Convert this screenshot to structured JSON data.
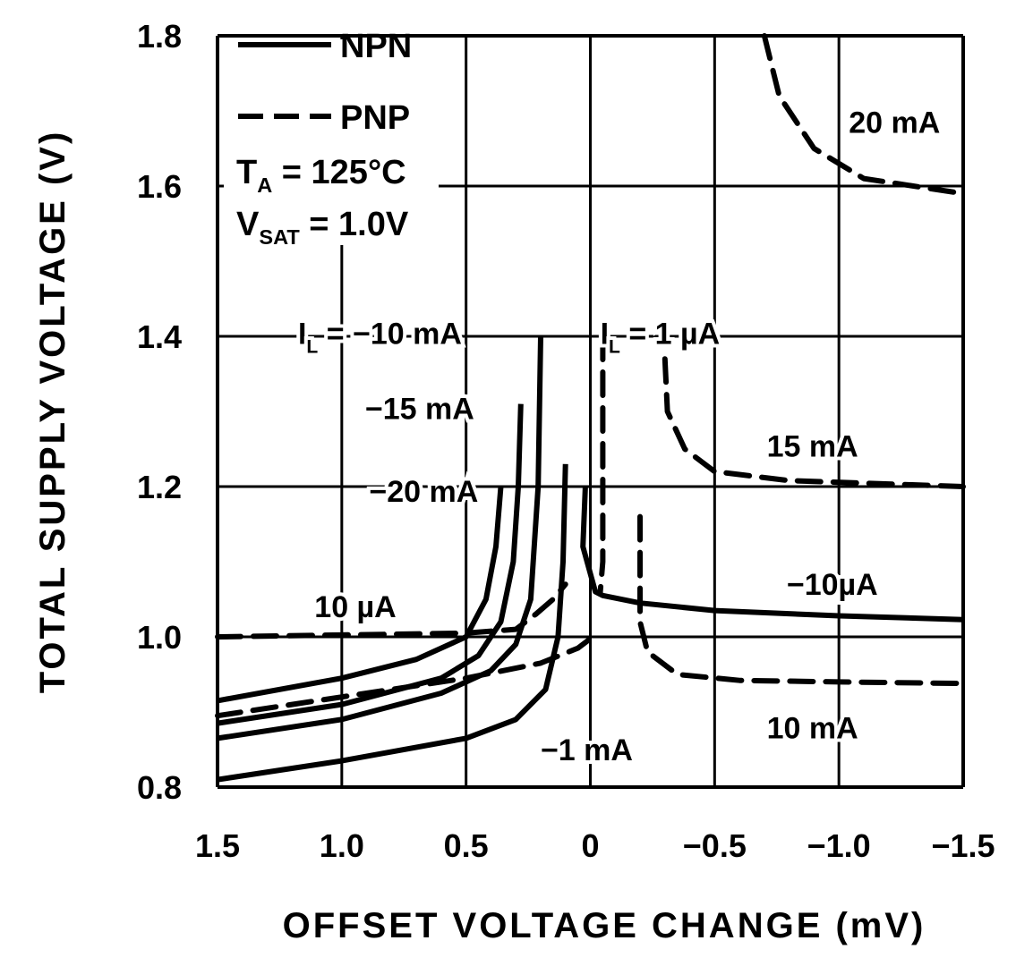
{
  "chart_data": {
    "type": "line",
    "xlabel": "OFFSET VOLTAGE CHANGE (mV)",
    "ylabel": "TOTAL SUPPLY VOLTAGE (V)",
    "xlim": [
      1.5,
      -1.5
    ],
    "ylim": [
      0.8,
      1.8
    ],
    "x_reversed": true,
    "grid": true,
    "x_ticks": [
      1.5,
      1.0,
      0.5,
      0,
      -0.5,
      -1.0,
      -1.5
    ],
    "x_tick_labels": [
      "1.5",
      "1.0",
      "0.5",
      "0",
      "−0.5",
      "−1.0",
      "−1.5"
    ],
    "y_ticks": [
      0.8,
      1.0,
      1.2,
      1.4,
      1.6,
      1.8
    ],
    "y_tick_labels": [
      "0.8",
      "1.0",
      "1.2",
      "1.4",
      "1.6",
      "1.8"
    ],
    "legend": {
      "placement": "top-left",
      "entries": [
        {
          "label": "NPN",
          "style": "solid"
        },
        {
          "label": "PNP",
          "style": "dashed"
        }
      ],
      "conditions": [
        {
          "main": "T",
          "sub": "A",
          "rest": " = 125°C"
        },
        {
          "main": "V",
          "sub": "SAT",
          "rest": " = 1.0V"
        }
      ]
    },
    "series": [
      {
        "type": "NPN",
        "label": "−20 mA",
        "style": "solid",
        "points": [
          [
            1.5,
            0.915
          ],
          [
            1.0,
            0.945
          ],
          [
            0.7,
            0.97
          ],
          [
            0.5,
            1.0
          ],
          [
            0.42,
            1.05
          ],
          [
            0.38,
            1.12
          ],
          [
            0.36,
            1.2
          ]
        ]
      },
      {
        "type": "NPN",
        "label": "−15 mA",
        "style": "solid",
        "points": [
          [
            1.5,
            0.885
          ],
          [
            1.0,
            0.91
          ],
          [
            0.6,
            0.945
          ],
          [
            0.45,
            0.975
          ],
          [
            0.36,
            1.02
          ],
          [
            0.31,
            1.1
          ],
          [
            0.29,
            1.2
          ],
          [
            0.28,
            1.31
          ]
        ]
      },
      {
        "type": "NPN",
        "label": "−10 mA",
        "style": "solid",
        "points": [
          [
            1.5,
            0.865
          ],
          [
            1.0,
            0.89
          ],
          [
            0.6,
            0.925
          ],
          [
            0.4,
            0.955
          ],
          [
            0.3,
            0.99
          ],
          [
            0.24,
            1.05
          ],
          [
            0.21,
            1.2
          ],
          [
            0.2,
            1.4
          ]
        ]
      },
      {
        "type": "NPN",
        "label": "−1 mA",
        "style": "solid",
        "points": [
          [
            1.5,
            0.81
          ],
          [
            1.0,
            0.835
          ],
          [
            0.5,
            0.865
          ],
          [
            0.3,
            0.89
          ],
          [
            0.18,
            0.93
          ],
          [
            0.13,
            1.0
          ],
          [
            0.11,
            1.1
          ],
          [
            0.1,
            1.23
          ]
        ]
      },
      {
        "type": "NPN",
        "label": "−10µA",
        "style": "solid",
        "points": [
          [
            0.02,
            1.2
          ],
          [
            0.03,
            1.12
          ],
          [
            -0.02,
            1.06
          ],
          [
            -0.05,
            1.055
          ],
          [
            -0.2,
            1.045
          ],
          [
            -0.5,
            1.035
          ],
          [
            -1.0,
            1.028
          ],
          [
            -1.5,
            1.023
          ]
        ]
      },
      {
        "type": "PNP",
        "label": "10 µA",
        "style": "dashed",
        "points": [
          [
            1.5,
            1.0
          ],
          [
            0.5,
            1.005
          ],
          [
            0.3,
            1.01
          ],
          [
            0.22,
            1.03
          ],
          [
            0.15,
            1.05
          ],
          [
            0.1,
            1.07
          ]
        ]
      },
      {
        "type": "PNP",
        "style": "dashed",
        "points": [
          [
            1.5,
            0.895
          ],
          [
            1.0,
            0.92
          ],
          [
            0.5,
            0.945
          ],
          [
            0.2,
            0.965
          ],
          [
            0.05,
            0.985
          ],
          [
            -0.01,
            1.0
          ]
        ]
      },
      {
        "type": "PNP",
        "label": "1 µA",
        "style": "dashed",
        "points": [
          [
            -0.05,
            1.4
          ],
          [
            -0.05,
            1.1
          ],
          [
            -0.04,
            1.06
          ]
        ]
      },
      {
        "type": "PNP",
        "label": "10 mA",
        "style": "dashed",
        "points": [
          [
            -0.2,
            1.16
          ],
          [
            -0.2,
            1.02
          ],
          [
            -0.23,
            0.98
          ],
          [
            -0.35,
            0.95
          ],
          [
            -0.6,
            0.942
          ],
          [
            -1.0,
            0.94
          ],
          [
            -1.5,
            0.938
          ]
        ]
      },
      {
        "type": "PNP",
        "label": "15 mA",
        "style": "dashed",
        "points": [
          [
            -0.3,
            1.37
          ],
          [
            -0.31,
            1.3
          ],
          [
            -0.38,
            1.25
          ],
          [
            -0.5,
            1.22
          ],
          [
            -0.8,
            1.208
          ],
          [
            -1.5,
            1.2
          ]
        ]
      },
      {
        "type": "PNP",
        "label": "20 mA",
        "style": "dashed",
        "points": [
          [
            -0.7,
            1.8
          ],
          [
            -0.76,
            1.72
          ],
          [
            -0.9,
            1.65
          ],
          [
            -1.1,
            1.61
          ],
          [
            -1.5,
            1.59
          ]
        ]
      }
    ],
    "annotations": [
      {
        "main": "I",
        "sub": "L",
        "rest": " = −10 mA",
        "x": 1.176,
        "y": 1.39
      },
      {
        "main": "I",
        "sub": "L",
        "rest": " = 1 µA",
        "x": -0.04,
        "y": 1.39
      },
      {
        "main": "−15 mA",
        "x": 0.906,
        "y": 1.29
      },
      {
        "main": "−20 mA",
        "x": 0.89,
        "y": 1.18
      },
      {
        "main": "10 µA",
        "x": 1.11,
        "y": 1.026
      },
      {
        "main": "20 mA",
        "x": -1.04,
        "y": 1.671
      },
      {
        "main": "15 mA",
        "x": -0.71,
        "y": 1.24
      },
      {
        "main": "−10µA",
        "x": -0.79,
        "y": 1.056
      },
      {
        "main": "10 mA",
        "x": -0.71,
        "y": 0.865
      },
      {
        "main": "−1 mA",
        "x": 0.2,
        "y": 0.836
      }
    ]
  }
}
